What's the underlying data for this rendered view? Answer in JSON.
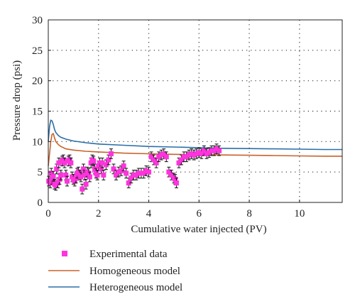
{
  "chart_data": {
    "type": "scatter",
    "xlabel": "Cumulative water injected (PV)",
    "ylabel": "Pressure drop (psi)",
    "xlim": [
      0,
      11.7
    ],
    "ylim": [
      0,
      30
    ],
    "xticks": [
      0,
      2,
      4,
      6,
      8,
      10
    ],
    "yticks": [
      0,
      5,
      10,
      15,
      20,
      25,
      30
    ],
    "grid": "dotted",
    "legend_position": "below",
    "series": [
      {
        "name": "Experimental data",
        "kind": "scatter_errorbar",
        "color": "#ff33dd",
        "marker": "square",
        "error": 0.8,
        "x": [
          0.02,
          0.08,
          0.12,
          0.15,
          0.2,
          0.25,
          0.3,
          0.33,
          0.38,
          0.42,
          0.45,
          0.5,
          0.55,
          0.6,
          0.65,
          0.7,
          0.75,
          0.8,
          0.85,
          0.9,
          0.95,
          1.0,
          1.05,
          1.1,
          1.15,
          1.2,
          1.25,
          1.3,
          1.35,
          1.4,
          1.45,
          1.5,
          1.55,
          1.6,
          1.65,
          1.7,
          1.75,
          1.8,
          1.85,
          1.9,
          1.95,
          2.0,
          2.05,
          2.1,
          2.15,
          2.2,
          2.3,
          2.4,
          2.5,
          2.6,
          2.7,
          2.8,
          2.9,
          3.0,
          3.1,
          3.2,
          3.3,
          3.4,
          3.5,
          3.6,
          3.7,
          3.8,
          3.9,
          4.0,
          4.1,
          4.2,
          4.3,
          4.4,
          4.5,
          4.6,
          4.7,
          4.8,
          4.9,
          5.0,
          5.05,
          5.1,
          5.2,
          5.3,
          5.4,
          5.5,
          5.6,
          5.7,
          5.8,
          5.9,
          6.0,
          6.1,
          6.2,
          6.3,
          6.4,
          6.5,
          6.6,
          6.7,
          6.8
        ],
        "y": [
          3.5,
          3.2,
          4.8,
          3.8,
          4.3,
          3.0,
          2.8,
          5.5,
          3.2,
          6.5,
          3.8,
          4.5,
          6.8,
          7.0,
          6.5,
          4.5,
          3.5,
          6.8,
          7.0,
          6.5,
          4.2,
          3.8,
          3.5,
          4.0,
          4.8,
          5.0,
          4.5,
          4.2,
          2.2,
          5.5,
          4.5,
          3.0,
          5.0,
          4.8,
          4.2,
          6.5,
          7.0,
          6.8,
          5.5,
          4.8,
          4.5,
          6.0,
          6.5,
          5.5,
          6.5,
          4.5,
          6.2,
          7.0,
          8.0,
          5.5,
          4.5,
          5.0,
          5.2,
          6.0,
          4.8,
          3.2,
          4.0,
          4.5,
          4.5,
          4.8,
          4.8,
          4.8,
          5.2,
          5.0,
          7.5,
          7.0,
          6.5,
          7.5,
          7.8,
          8.0,
          7.5,
          5.0,
          4.5,
          4.0,
          3.8,
          3.2,
          6.5,
          7.0,
          7.5,
          7.5,
          7.8,
          8.0,
          7.8,
          8.0,
          8.2,
          8.0,
          8.5,
          8.0,
          8.2,
          8.5,
          8.5,
          8.8,
          8.5
        ]
      },
      {
        "name": "Homogeneous model",
        "kind": "line",
        "color": "#c8622a",
        "x": [
          0,
          0.05,
          0.1,
          0.15,
          0.2,
          0.25,
          0.3,
          0.4,
          0.5,
          0.7,
          1.0,
          1.5,
          2.0,
          3.0,
          4.0,
          5.0,
          6.0,
          7.0,
          8.0,
          9.0,
          10.0,
          11.0,
          11.7
        ],
        "y": [
          6.0,
          8.0,
          10.0,
          11.2,
          11.3,
          10.6,
          10.0,
          9.5,
          9.2,
          8.8,
          8.6,
          8.4,
          8.3,
          8.1,
          8.0,
          7.9,
          7.85,
          7.8,
          7.75,
          7.7,
          7.65,
          7.6,
          7.6
        ]
      },
      {
        "name": "Heterogeneous model",
        "kind": "line",
        "color": "#2a6fa8",
        "x": [
          0,
          0.05,
          0.1,
          0.15,
          0.2,
          0.25,
          0.3,
          0.4,
          0.5,
          0.7,
          1.0,
          1.5,
          2.0,
          3.0,
          4.0,
          5.0,
          6.0,
          7.0,
          8.0,
          9.0,
          10.0,
          11.0,
          11.7
        ],
        "y": [
          10.0,
          12.5,
          13.5,
          13.4,
          12.8,
          12.0,
          11.5,
          11.0,
          10.7,
          10.4,
          10.1,
          9.8,
          9.6,
          9.4,
          9.2,
          9.1,
          9.0,
          8.9,
          8.85,
          8.8,
          8.75,
          8.7,
          8.7
        ]
      }
    ]
  }
}
